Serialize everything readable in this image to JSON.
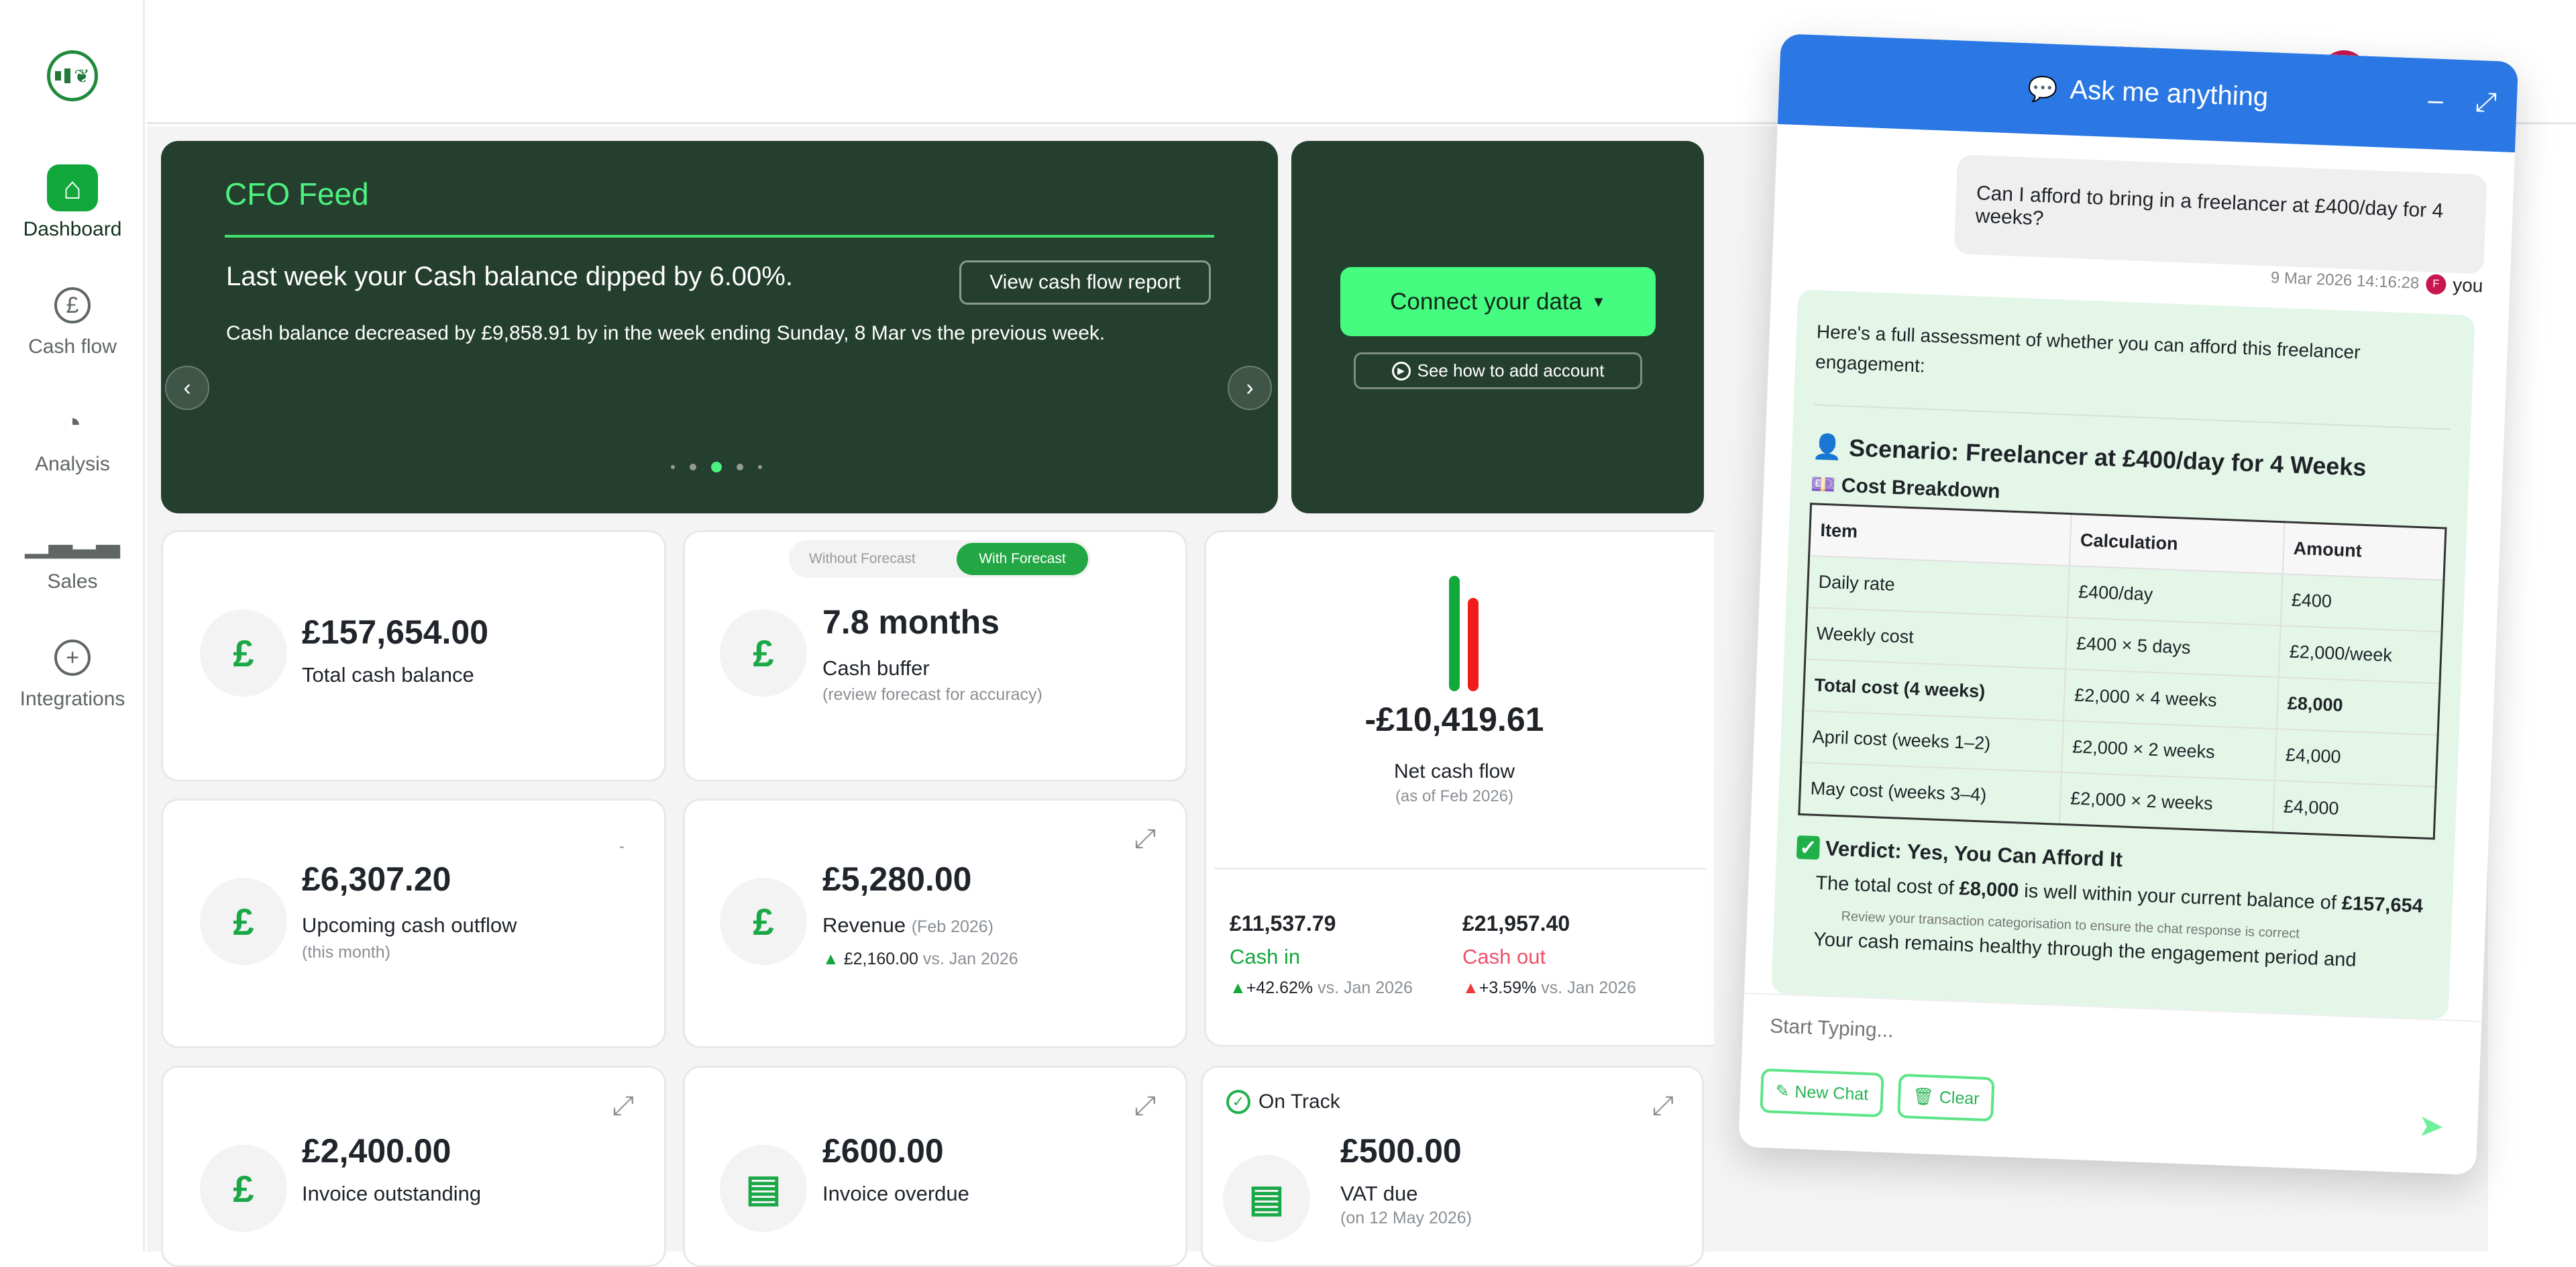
{
  "sidebar": {
    "items": [
      {
        "label": "Dashboard",
        "icon": "home-icon",
        "active": true
      },
      {
        "label": "Cash flow",
        "icon": "pound-circle-icon"
      },
      {
        "label": "Analysis",
        "icon": "pie-chart-icon"
      },
      {
        "label": "Sales",
        "icon": "bar-chart-icon"
      },
      {
        "label": "Integrations",
        "icon": "plus-circle-icon"
      }
    ]
  },
  "feed": {
    "title": "CFO Feed",
    "headline": "Last week your Cash balance dipped by 6.00%.",
    "button": "View cash flow report",
    "detail": "Cash balance decreased by £9,858.91 by in the week ending Sunday, 8 Mar vs the previous week.",
    "active_dot": 3,
    "dot_count": 5
  },
  "connect": {
    "button": "Connect your data",
    "link": "See how to add account"
  },
  "cards": {
    "cash_balance": {
      "value": "£157,654.00",
      "label": "Total cash balance"
    },
    "cash_buffer": {
      "toggle": [
        "Without Forecast",
        "With Forecast"
      ],
      "toggle_active": "With Forecast",
      "value": "7.8 months",
      "label": "Cash buffer",
      "sub": "(review forecast for accuracy)"
    },
    "net_cash_flow": {
      "value": "-£10,419.61",
      "label": "Net cash flow",
      "sub": "(as of Feb 2026)",
      "cash_in": {
        "value": "£11,537.79",
        "label": "Cash in",
        "change": "+42.62%",
        "vs": "vs. Jan 2026"
      },
      "cash_out": {
        "value": "£21,957.40",
        "label": "Cash out",
        "change": "+3.59%",
        "vs": "vs. Jan 2026"
      },
      "colors": {
        "in": "#13a83a",
        "out": "#f01b1b"
      }
    },
    "outflow": {
      "value": "£6,307.20",
      "label": "Upcoming cash outflow",
      "sub": "(this month)",
      "minus": "-"
    },
    "revenue": {
      "value": "£5,280.00",
      "label": "Revenue",
      "period": "(Feb 2026)",
      "change": "£2,160.00",
      "vs": "vs. Jan 2026"
    },
    "invoice_outstanding": {
      "value": "£2,400.00",
      "label": "Invoice outstanding"
    },
    "invoice_overdue": {
      "value": "£600.00",
      "label": "Invoice overdue"
    },
    "vat": {
      "status": "On Track",
      "value": "£500.00",
      "label": "VAT due",
      "sub": "(on 12 May 2026)"
    }
  },
  "chat": {
    "title": "Ask me anything",
    "user_message": "Can I afford to bring in a freelancer at £400/day for 4 weeks?",
    "timestamp": "9 Mar 2026 14:16:28",
    "avatar_initial": "F",
    "user": "you",
    "intro": "Here's a full assessment of whether you can afford this freelancer engagement:",
    "scenario": "Scenario: Freelancer at £400/day for 4 Weeks",
    "breakdown": "Cost Breakdown",
    "table": {
      "headers": [
        "Item",
        "Calculation",
        "Amount"
      ],
      "rows": [
        [
          "Daily rate",
          "£400/day",
          "£400"
        ],
        [
          "Weekly cost",
          "£400 × 5 days",
          "£2,000/week"
        ],
        [
          "Total cost (4 weeks)",
          "£2,000 × 4 weeks",
          "£8,000"
        ],
        [
          "April cost (weeks 1–2)",
          "£2,000 × 2 weeks",
          "£4,000"
        ],
        [
          "May cost (weeks 3–4)",
          "£2,000 × 2 weeks",
          "£4,000"
        ]
      ]
    },
    "verdict": "Verdict: Yes, You Can Afford It",
    "verdict_pre": "The total cost of ",
    "verdict_amount": "£8,000",
    "verdict_mid": " is well within your current balance of ",
    "verdict_balance": "£157,654",
    "disclaimer": "Review your transaction categorisation to ensure the chat response is correct",
    "continuation": "Your cash remains healthy through the engagement period and",
    "placeholder": "Start Typing...",
    "new_chat": "New Chat",
    "clear": "Clear"
  }
}
